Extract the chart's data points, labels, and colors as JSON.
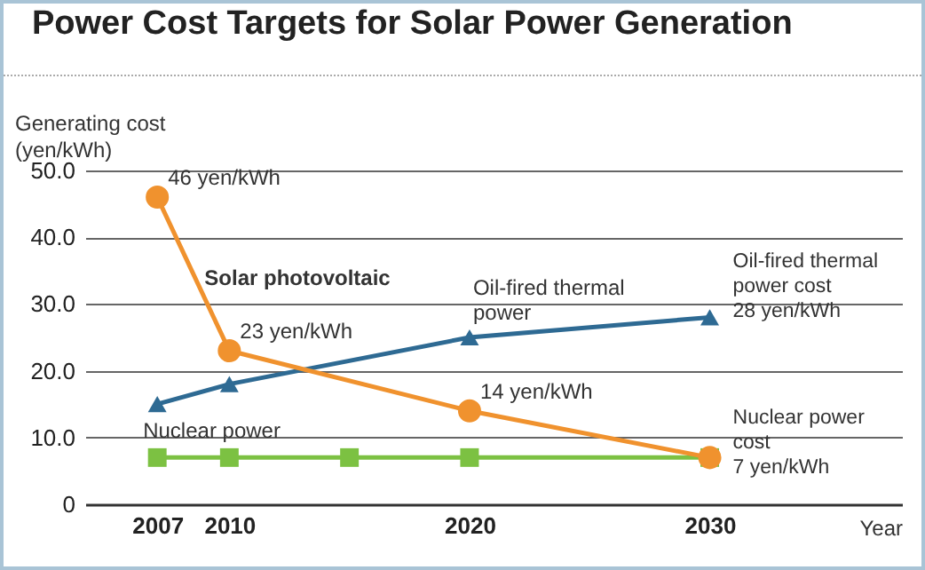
{
  "chart_data": {
    "type": "line",
    "title": "Power Cost Targets for Solar Power Generation",
    "ylabel": "Generating cost\n(yen/kWh)",
    "xlabel": "Year",
    "xlim": [
      2004,
      2038
    ],
    "xticks": [
      2007,
      2010,
      2020,
      2030
    ],
    "ylim": [
      0,
      50
    ],
    "yticks": [
      0,
      {
        "value": 10,
        "label": "10.0"
      },
      {
        "value": 20,
        "label": "20.0"
      },
      {
        "value": 30,
        "label": "30.0"
      },
      {
        "value": 40,
        "label": "40.0"
      },
      {
        "value": 50,
        "label": "50.0"
      }
    ],
    "grid": "y",
    "series": [
      {
        "name": "Solar photovoltaic",
        "color": "#f0922e",
        "marker": "circle",
        "x": [
          2007,
          2010,
          2020,
          2030
        ],
        "values": [
          46,
          23,
          14,
          7
        ],
        "value_labels": [
          "46 yen/kWh",
          "23 yen/kWh",
          "14 yen/kWh",
          null
        ]
      },
      {
        "name": "Oil-fired thermal\npower",
        "color": "#2e6a93",
        "marker": "triangle",
        "x": [
          2007,
          2010,
          2020,
          2030
        ],
        "values": [
          15,
          18,
          25,
          28
        ]
      },
      {
        "name": "Nuclear power",
        "color": "#7cc142",
        "marker": "square",
        "x": [
          2007,
          2010,
          2015,
          2020,
          2030
        ],
        "values": [
          7,
          7,
          7,
          7,
          7
        ]
      }
    ],
    "annotations": [
      {
        "text": "Oil-fired thermal\npower cost\n28 yen/kWh",
        "x": 2030,
        "y": 28
      },
      {
        "text": "Nuclear power\ncost\n7 yen/kWh",
        "x": 2030,
        "y": 7
      }
    ]
  }
}
